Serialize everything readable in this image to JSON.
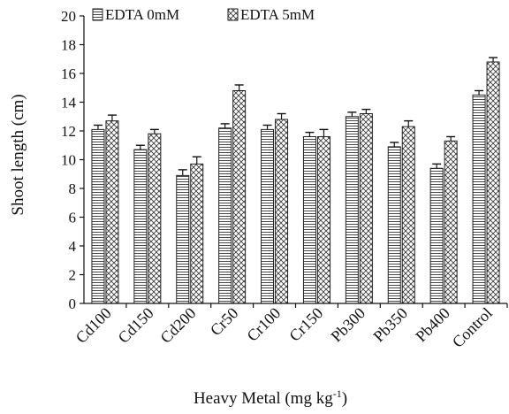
{
  "chart_data": {
    "type": "bar",
    "title": "",
    "xlabel": "Heavy Metal (mg kg",
    "xlabel_sup": "-1",
    "xlabel_suffix": ")",
    "ylabel": "Shoot length (cm)",
    "ylim": [
      0,
      20
    ],
    "yticks": [
      0,
      2,
      4,
      6,
      8,
      10,
      12,
      14,
      16,
      18,
      20
    ],
    "grid": false,
    "legend_position": "top",
    "categories": [
      "Cd100",
      "Cd150",
      "Cd200",
      "Cr50",
      "Cr100",
      "Cr150",
      "Pb300",
      "Pb350",
      "Pb400",
      "Control"
    ],
    "series": [
      {
        "name": "EDTA 0mM",
        "pattern": "horizontal-stripes",
        "values": [
          12.1,
          10.7,
          8.9,
          12.2,
          12.1,
          11.6,
          13.0,
          10.9,
          9.4,
          14.5
        ],
        "errors": [
          0.3,
          0.3,
          0.4,
          0.3,
          0.3,
          0.3,
          0.3,
          0.3,
          0.3,
          0.3
        ]
      },
      {
        "name": "EDTA 5mM",
        "pattern": "crosshatch",
        "values": [
          12.7,
          11.8,
          9.7,
          14.8,
          12.8,
          11.6,
          13.2,
          12.3,
          11.3,
          16.8
        ],
        "errors": [
          0.4,
          0.3,
          0.5,
          0.4,
          0.4,
          0.5,
          0.3,
          0.4,
          0.3,
          0.3
        ]
      }
    ]
  }
}
